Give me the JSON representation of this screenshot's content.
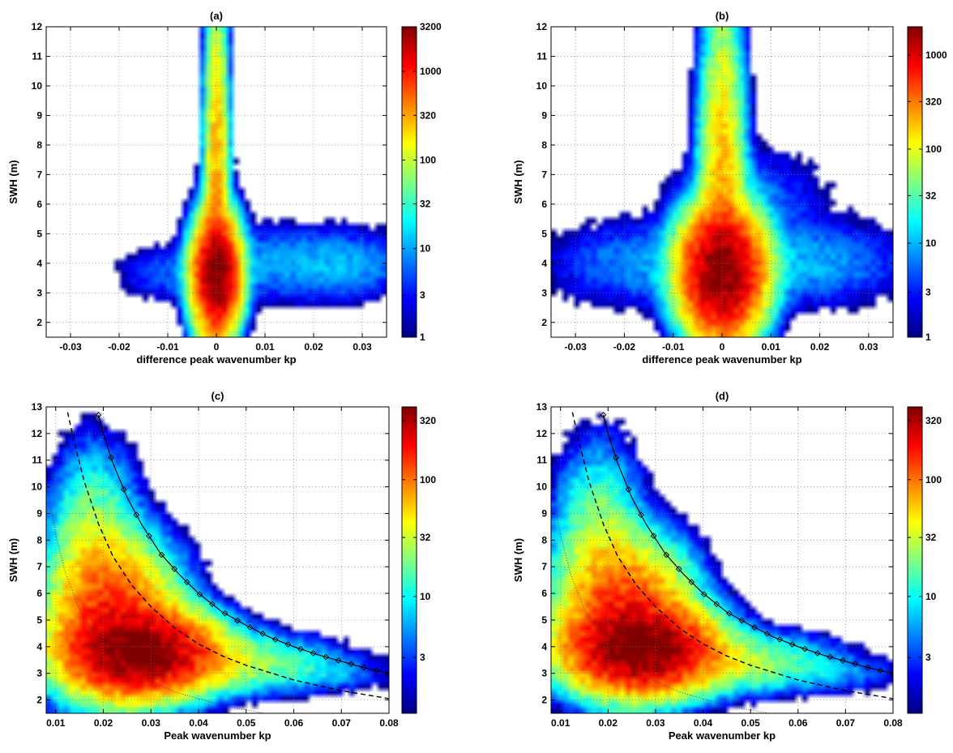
{
  "chart_data": [
    {
      "panel": "(a)",
      "type": "heatmap",
      "title": "(a)",
      "xlabel": "difference peak wavenumber kp",
      "ylabel": "SWH (m)",
      "xlim": [
        -0.035,
        0.035
      ],
      "ylim": [
        1.5,
        12
      ],
      "xticks": [
        -0.03,
        -0.02,
        -0.01,
        0,
        0.01,
        0.02,
        0.03
      ],
      "xtick_labels": [
        "-0.03",
        "-0.02",
        "-0.01",
        "0",
        "0.01",
        "0.02",
        "0.03"
      ],
      "yticks": [
        2,
        3,
        4,
        5,
        6,
        7,
        8,
        9,
        10,
        11,
        12
      ],
      "ytick_labels": [
        "2",
        "3",
        "4",
        "5",
        "6",
        "7",
        "8",
        "9",
        "10",
        "11",
        "12"
      ],
      "colorbar": {
        "scale": "log",
        "min": 1,
        "max": 3200,
        "ticks": [
          1,
          3,
          10,
          32,
          100,
          320,
          1000,
          3200
        ],
        "tick_labels": [
          "1",
          "3",
          "10",
          "32",
          "100",
          "320",
          "1000",
          "3200"
        ]
      },
      "grid": true,
      "density_blobs": [
        {
          "x": 0,
          "y": 3.6,
          "sx": 0.0022,
          "sy": 0.9,
          "amp": 3200
        },
        {
          "x": 0,
          "y": 6.5,
          "sx": 0.0012,
          "sy": 3.2,
          "amp": 320
        },
        {
          "x": 0,
          "y": 10.5,
          "sx": 0.0009,
          "sy": 1.6,
          "amp": 18
        },
        {
          "x": 0.015,
          "y": 4.0,
          "sx": 0.012,
          "sy": 0.7,
          "amp": 10
        },
        {
          "x": -0.01,
          "y": 3.6,
          "sx": 0.006,
          "sy": 0.5,
          "amp": 5
        },
        {
          "x": 0.028,
          "y": 3.9,
          "sx": 0.007,
          "sy": 0.6,
          "amp": 6
        }
      ]
    },
    {
      "panel": "(b)",
      "type": "heatmap",
      "title": "(b)",
      "xlabel": "difference peak wavenumber kp",
      "ylabel": "SWH (m)",
      "xlim": [
        -0.035,
        0.035
      ],
      "ylim": [
        1.5,
        12
      ],
      "xticks": [
        -0.03,
        -0.02,
        -0.01,
        0,
        0.01,
        0.02,
        0.03
      ],
      "xtick_labels": [
        "-0.03",
        "-0.02",
        "-0.01",
        "0",
        "0.01",
        "0.02",
        "0.03"
      ],
      "yticks": [
        2,
        3,
        4,
        5,
        6,
        7,
        8,
        9,
        10,
        11,
        12
      ],
      "ytick_labels": [
        "2",
        "3",
        "4",
        "5",
        "6",
        "7",
        "8",
        "9",
        "10",
        "11",
        "12"
      ],
      "colorbar": {
        "scale": "log",
        "min": 1,
        "max": 2000,
        "ticks": [
          1,
          3,
          10,
          32,
          100,
          320,
          1000
        ],
        "tick_labels": [
          "1",
          "3",
          "10",
          "32",
          "100",
          "320",
          "1000"
        ]
      },
      "grid": true,
      "density_blobs": [
        {
          "x": 0,
          "y": 3.7,
          "sx": 0.004,
          "sy": 1.0,
          "amp": 2000
        },
        {
          "x": 0,
          "y": 6.5,
          "sx": 0.0022,
          "sy": 3.0,
          "amp": 200
        },
        {
          "x": 0,
          "y": 10.5,
          "sx": 0.0012,
          "sy": 1.6,
          "amp": 15
        },
        {
          "x": 0.016,
          "y": 4.0,
          "sx": 0.012,
          "sy": 0.8,
          "amp": 10
        },
        {
          "x": -0.016,
          "y": 4.0,
          "sx": 0.011,
          "sy": 0.8,
          "amp": 8
        },
        {
          "x": 0.006,
          "y": 6.2,
          "sx": 0.009,
          "sy": 1.0,
          "amp": 5
        }
      ]
    },
    {
      "panel": "(c)",
      "type": "heatmap",
      "title": "(c)",
      "xlabel": "Peak wavenumber kp",
      "ylabel": "SWH (m)",
      "xlim": [
        0.008,
        0.08
      ],
      "ylim": [
        1.5,
        13
      ],
      "xticks": [
        0.01,
        0.02,
        0.03,
        0.04,
        0.05,
        0.06,
        0.07,
        0.08
      ],
      "xtick_labels": [
        "0.01",
        "0.02",
        "0.03",
        "0.04",
        "0.05",
        "0.06",
        "0.07",
        "0.08"
      ],
      "yticks": [
        2,
        3,
        4,
        5,
        6,
        7,
        8,
        9,
        10,
        11,
        12,
        13
      ],
      "ytick_labels": [
        "2",
        "3",
        "4",
        "5",
        "6",
        "7",
        "8",
        "9",
        "10",
        "11",
        "12",
        "13"
      ],
      "colorbar": {
        "scale": "log",
        "min": 1,
        "max": 420,
        "ticks": [
          3,
          10,
          32,
          100,
          320
        ],
        "tick_labels": [
          "3",
          "10",
          "32",
          "100",
          "320"
        ]
      },
      "grid": true,
      "density_blobs": [
        {
          "x": 0.028,
          "y": 3.8,
          "sx": 0.008,
          "sy": 0.8,
          "amp": 420
        },
        {
          "x": 0.022,
          "y": 5.0,
          "sx": 0.007,
          "sy": 1.5,
          "amp": 150
        },
        {
          "x": 0.018,
          "y": 7.5,
          "sx": 0.005,
          "sy": 2.0,
          "amp": 30
        },
        {
          "x": 0.045,
          "y": 3.4,
          "sx": 0.012,
          "sy": 0.6,
          "amp": 30
        },
        {
          "x": 0.068,
          "y": 3.0,
          "sx": 0.008,
          "sy": 0.4,
          "amp": 4
        }
      ],
      "curves": [
        {
          "style": "solid-diamond",
          "x": [
            0.019,
            0.02,
            0.022,
            0.025,
            0.028,
            0.032,
            0.036,
            0.04,
            0.045,
            0.05,
            0.055,
            0.06,
            0.065,
            0.07,
            0.075,
            0.08
          ],
          "y": [
            12.7,
            12.0,
            10.9,
            9.6,
            8.6,
            7.5,
            6.7,
            6.0,
            5.3,
            4.8,
            4.35,
            4.0,
            3.7,
            3.45,
            3.2,
            3.0
          ]
        },
        {
          "style": "dashed",
          "x": [
            0.0125,
            0.014,
            0.016,
            0.019,
            0.022,
            0.026,
            0.03,
            0.035,
            0.04,
            0.045,
            0.05,
            0.06,
            0.07,
            0.08
          ],
          "y": [
            12.8,
            11.6,
            10.2,
            8.6,
            7.4,
            6.3,
            5.5,
            4.7,
            4.1,
            3.65,
            3.3,
            2.75,
            2.35,
            2.05
          ]
        },
        {
          "style": "dotted",
          "x": [
            0.008,
            0.01,
            0.012,
            0.015,
            0.018,
            0.022,
            0.026,
            0.03,
            0.035,
            0.04,
            0.045,
            0.05,
            0.055
          ],
          "y": [
            10.2,
            8.2,
            6.8,
            5.4,
            4.5,
            3.7,
            3.1,
            2.7,
            2.3,
            2.05,
            1.8,
            1.62,
            1.47
          ]
        }
      ]
    },
    {
      "panel": "(d)",
      "type": "heatmap",
      "title": "(d)",
      "xlabel": "Peak wavenumber kp",
      "ylabel": "SWH (m)",
      "xlim": [
        0.008,
        0.08
      ],
      "ylim": [
        1.5,
        13
      ],
      "xticks": [
        0.01,
        0.02,
        0.03,
        0.04,
        0.05,
        0.06,
        0.07,
        0.08
      ],
      "xtick_labels": [
        "0.01",
        "0.02",
        "0.03",
        "0.04",
        "0.05",
        "0.06",
        "0.07",
        "0.08"
      ],
      "yticks": [
        2,
        3,
        4,
        5,
        6,
        7,
        8,
        9,
        10,
        11,
        12,
        13
      ],
      "ytick_labels": [
        "2",
        "3",
        "4",
        "5",
        "6",
        "7",
        "8",
        "9",
        "10",
        "11",
        "12",
        "13"
      ],
      "colorbar": {
        "scale": "log",
        "min": 1,
        "max": 420,
        "ticks": [
          3,
          10,
          32,
          100,
          320
        ],
        "tick_labels": [
          "3",
          "10",
          "32",
          "100",
          "320"
        ]
      },
      "grid": true,
      "density_blobs": [
        {
          "x": 0.027,
          "y": 3.9,
          "sx": 0.008,
          "sy": 0.8,
          "amp": 420
        },
        {
          "x": 0.024,
          "y": 5.2,
          "sx": 0.007,
          "sy": 1.4,
          "amp": 150
        },
        {
          "x": 0.018,
          "y": 7.5,
          "sx": 0.005,
          "sy": 2.0,
          "amp": 30
        },
        {
          "x": 0.045,
          "y": 3.4,
          "sx": 0.012,
          "sy": 0.6,
          "amp": 30
        },
        {
          "x": 0.068,
          "y": 3.0,
          "sx": 0.008,
          "sy": 0.4,
          "amp": 4
        }
      ],
      "curves": [
        {
          "style": "solid-diamond",
          "x": [
            0.019,
            0.02,
            0.022,
            0.025,
            0.028,
            0.032,
            0.036,
            0.04,
            0.045,
            0.05,
            0.055,
            0.06,
            0.065,
            0.07,
            0.075,
            0.08
          ],
          "y": [
            12.7,
            12.0,
            10.9,
            9.6,
            8.6,
            7.5,
            6.7,
            6.0,
            5.3,
            4.8,
            4.35,
            4.0,
            3.7,
            3.45,
            3.2,
            3.0
          ]
        },
        {
          "style": "dashed",
          "x": [
            0.0125,
            0.014,
            0.016,
            0.019,
            0.022,
            0.026,
            0.03,
            0.035,
            0.04,
            0.045,
            0.05,
            0.06,
            0.07,
            0.08
          ],
          "y": [
            12.8,
            11.6,
            10.2,
            8.6,
            7.4,
            6.3,
            5.5,
            4.7,
            4.1,
            3.65,
            3.3,
            2.75,
            2.35,
            2.05
          ]
        },
        {
          "style": "dotted",
          "x": [
            0.008,
            0.01,
            0.012,
            0.015,
            0.018,
            0.022,
            0.026,
            0.03,
            0.035,
            0.04,
            0.045,
            0.05,
            0.055
          ],
          "y": [
            10.2,
            8.2,
            6.8,
            5.4,
            4.5,
            3.7,
            3.1,
            2.7,
            2.3,
            2.05,
            1.8,
            1.62,
            1.47
          ]
        }
      ]
    }
  ]
}
